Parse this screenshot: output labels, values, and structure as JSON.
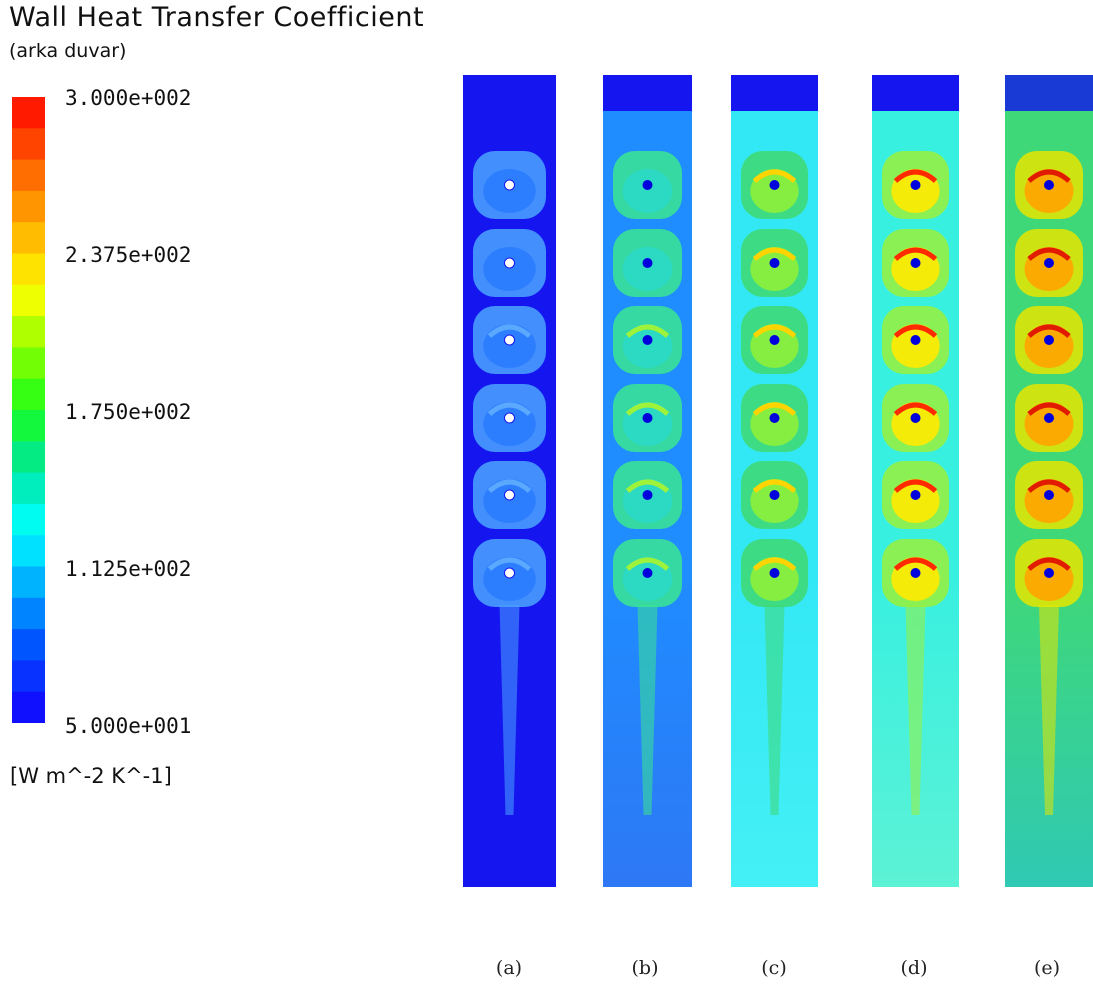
{
  "title": "Wall Heat Transfer Coefficient",
  "subtitle": "(arka duvar)",
  "units": "[W m^-2 K^-1]",
  "colorbar": {
    "ticks": [
      "3.000e+002",
      "2.375e+002",
      "1.750e+002",
      "1.125e+002",
      "5.000e+001"
    ],
    "min": 50,
    "max": 300,
    "colors": [
      "#ff1a00",
      "#ff6a00",
      "#ffb400",
      "#ffff00",
      "#8aff00",
      "#1aff1a",
      "#00e6a0",
      "#00ffff",
      "#00aaff",
      "#0050ff",
      "#1010ff"
    ]
  },
  "panels": [
    {
      "caption": "(a)",
      "background": "#1515f0",
      "bottom_color": "#1515f0",
      "ring_colors": [
        "#2b7cff",
        "#4aa4ff"
      ],
      "core_color": "#ffffff",
      "arc_color": "#5aa9ff",
      "top_band": "#1515f0"
    },
    {
      "caption": "(b)",
      "background": "#1f8cff",
      "bottom_color": "#2e78f5",
      "ring_colors": [
        "#2bd9c8",
        "#3be690"
      ],
      "core_color": "#0000dd",
      "arc_color": "#9ef23a",
      "top_band": "#1515f0"
    },
    {
      "caption": "(c)",
      "background": "#33e8f5",
      "bottom_color": "#44f0f5",
      "ring_colors": [
        "#8ef03a",
        "#3fd970"
      ],
      "core_color": "#0000dd",
      "arc_color": "#ffd400",
      "top_band": "#1515f0"
    },
    {
      "caption": "(d)",
      "background": "#38f0e0",
      "bottom_color": "#5cf2d6",
      "ring_colors": [
        "#ffea00",
        "#9af03a"
      ],
      "core_color": "#0000dd",
      "arc_color": "#ff2a00",
      "top_band": "#1515f0"
    },
    {
      "caption": "(e)",
      "background": "#3fd878",
      "bottom_color": "#2fc9b4",
      "ring_colors": [
        "#ffa300",
        "#e6e600"
      ],
      "core_color": "#0000dd",
      "arc_color": "#e11b00",
      "top_band": "#1a3ad6"
    }
  ]
}
